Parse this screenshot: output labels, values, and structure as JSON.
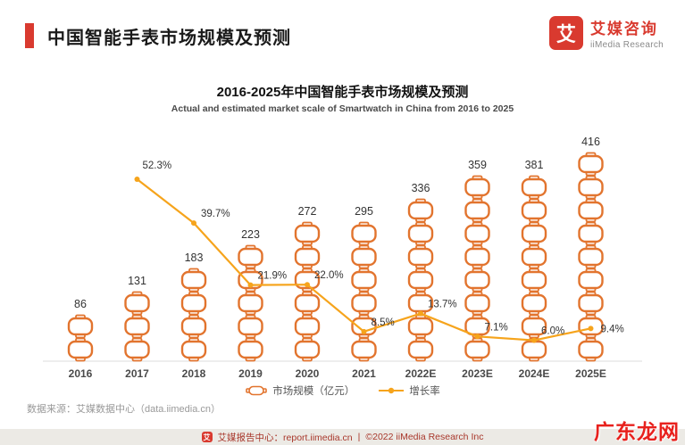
{
  "colors": {
    "brand_red": "#D93A2F",
    "footer_red": "#A8372B",
    "watermark_red": "#E8211D"
  },
  "header": {
    "title": "中国智能手表市场规模及预测",
    "logo": {
      "glyph": "艾",
      "brand_cn": "艾媒咨询",
      "brand_en": "iiMedia Research"
    }
  },
  "chart": {
    "title": "2016-2025年中国智能手表市场规模及预测",
    "subtitle": "Actual and estimated market scale of Smartwatch in China from 2016 to 2025"
  },
  "chart_data": {
    "type": "bar+line",
    "title": "2016-2025年中国智能手表市场规模及预测",
    "categories": [
      "2016",
      "2017",
      "2018",
      "2019",
      "2020",
      "2021",
      "2022E",
      "2023E",
      "2024E",
      "2025E"
    ],
    "series": [
      {
        "name": "市场规模（亿元）",
        "type": "bar",
        "unit": "亿元",
        "values": [
          86,
          131,
          183,
          223,
          272,
          295,
          336,
          359,
          381,
          416
        ]
      },
      {
        "name": "增长率",
        "type": "line",
        "unit": "%",
        "values": [
          null,
          52.3,
          39.7,
          21.9,
          22.0,
          8.5,
          13.7,
          7.1,
          6.0,
          9.4
        ],
        "labels": [
          "52.3%",
          "39.7%",
          "21.9%",
          "22.0%",
          "8.5%",
          "13.7%",
          "7.1%",
          "6.0%",
          "9.4%"
        ]
      }
    ],
    "colors": {
      "bar": "#E2742E",
      "line": "#F6A41C"
    },
    "grid": false,
    "legend_position": "bottom"
  },
  "legend": {
    "market": "市场规模（亿元）",
    "growth": "增长率"
  },
  "source": "数据来源：艾媒数据中心（data.iimedia.cn）",
  "footer": {
    "center": "艾媒报告中心：report.iimedia.cn",
    "separator": "|",
    "copyright": "©2022 iiMedia Research Inc"
  },
  "watermark": "广东龙网"
}
